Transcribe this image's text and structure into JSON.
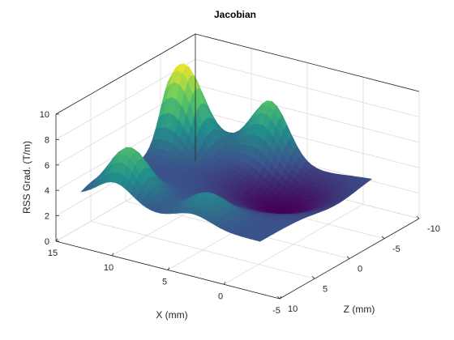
{
  "chart_data": {
    "type": "surface",
    "title": "Jacobian",
    "xlabel": "X (mm)",
    "ylabel": "Z (mm)",
    "zlabel": "RSS Grad. (T/m)",
    "xlim": [
      -5,
      15
    ],
    "ylim": [
      -10,
      10
    ],
    "zlim": [
      0,
      10
    ],
    "x_ticks": [
      "-5",
      "0",
      "5",
      "10",
      "15"
    ],
    "y_ticks": [
      "-10",
      "-5",
      "0",
      "5",
      "10"
    ],
    "z_ticks": [
      "0",
      "2",
      "4",
      "6",
      "8",
      "10"
    ],
    "grid": true,
    "colormap": [
      "#440154",
      "#3b528b",
      "#21918c",
      "#5ec962",
      "#fde725"
    ],
    "peaks": [
      {
        "x": 11.0,
        "z": 6.0,
        "value": 7.0
      },
      {
        "x": 4.0,
        "z": 6.0,
        "value": 5.0
      },
      {
        "x": 13.0,
        "z": -5.0,
        "value": 9.7
      },
      {
        "x": 7.0,
        "z": -8.0,
        "value": 7.4
      }
    ],
    "base_level": 3.2
  }
}
